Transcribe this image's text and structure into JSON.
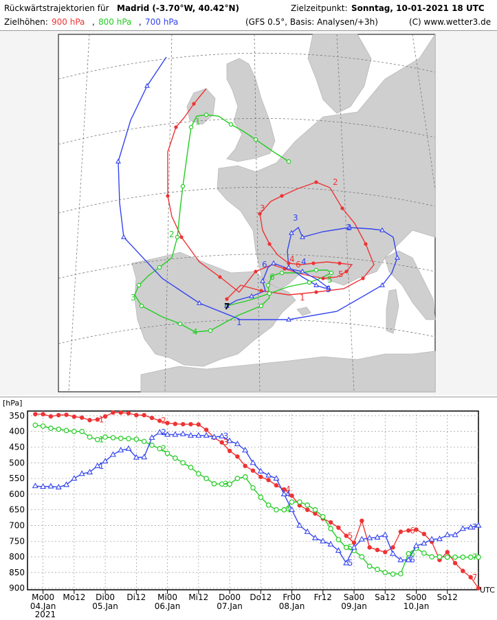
{
  "header": {
    "title_prefix": "Rückwärtstrajektorien für",
    "location": "Madrid (-3.70°W, 40.42°N)",
    "target_label": "Zielzeitpunkt:",
    "target_time": "Sonntag, 10-01-2021  18 UTC",
    "levels_label": "Zielhöhen:",
    "level_900": "900 hPa",
    "level_800": "800 hPa",
    "level_700": "700 hPa",
    "sep1": ",",
    "sep2": ",",
    "model_info": "(GFS 0.5°, Basis: Analysen/+3h)",
    "copyright": "(C) www.wetter3.de"
  },
  "colors": {
    "h900": "#ee3333",
    "h800": "#22cc22",
    "h700": "#3344ee"
  },
  "map": {
    "origin_label": "7",
    "traj_900": {
      "day_labels": [
        "1",
        "2",
        "3",
        "4",
        "5",
        "6"
      ]
    },
    "traj_800": {
      "day_labels": [
        "1",
        "2",
        "3",
        "4",
        "5",
        "6"
      ]
    },
    "traj_700": {
      "day_labels": [
        "1",
        "2",
        "3",
        "4",
        "5",
        "6"
      ]
    }
  },
  "chart_data": {
    "type": "line",
    "ylabel": "[hPa]",
    "y_ticks": [
      350,
      400,
      450,
      500,
      550,
      600,
      650,
      700,
      750,
      800,
      850,
      900
    ],
    "ylim": [
      335,
      905
    ],
    "x_ticks_top": [
      "Mo00",
      "Mo12",
      "Di00",
      "Di12",
      "Mi00",
      "Mi12",
      "Do00",
      "Do12",
      "Fr00",
      "Fr12",
      "Sa00",
      "Sa12",
      "So00",
      "So12"
    ],
    "x_ticks_dates": [
      "04.Jan",
      "05.Jan",
      "06.Jan",
      "07.Jan",
      "08.Jan",
      "09.Jan",
      "10.Jan"
    ],
    "year": "2021",
    "utc_label": "UTC",
    "x_hours_range": [
      -6,
      168
    ],
    "series": [
      {
        "name": "900 hPa",
        "marker": "filled-circle",
        "x": [
          -3,
          0,
          3,
          6,
          9,
          12,
          15,
          18,
          21,
          24,
          27,
          30,
          33,
          36,
          39,
          42,
          45,
          48,
          51,
          54,
          57,
          60,
          63,
          66,
          69,
          72,
          75,
          78,
          81,
          84,
          87,
          90,
          93,
          96,
          99,
          102,
          105,
          108,
          111,
          114,
          117,
          120,
          123,
          126,
          129,
          132,
          135,
          138,
          141,
          144,
          147,
          150,
          153,
          156,
          159,
          162,
          165,
          168
        ],
        "values": [
          345,
          345,
          352,
          348,
          347,
          353,
          356,
          364,
          362,
          352,
          340,
          340,
          342,
          348,
          348,
          357,
          366,
          373,
          376,
          377,
          377,
          378,
          395,
          420,
          435,
          462,
          480,
          510,
          525,
          545,
          555,
          572,
          585,
          605,
          636,
          650,
          662,
          678,
          690,
          707,
          733,
          755,
          685,
          770,
          778,
          785,
          770,
          720,
          716,
          713,
          727,
          752,
          810,
          785,
          820,
          845,
          865,
          900
        ],
        "day_labels": [
          "1",
          "2",
          "3",
          "4",
          "5",
          "6",
          "7"
        ],
        "day_label_x": [
          21,
          45,
          69,
          93,
          117,
          141,
          165
        ]
      },
      {
        "name": "800 hPa",
        "marker": "open-circle",
        "x": [
          -3,
          0,
          3,
          6,
          9,
          12,
          15,
          18,
          21,
          24,
          27,
          30,
          33,
          36,
          39,
          42,
          45,
          48,
          51,
          54,
          57,
          60,
          63,
          66,
          69,
          72,
          75,
          78,
          81,
          84,
          87,
          90,
          93,
          96,
          99,
          102,
          105,
          108,
          111,
          114,
          117,
          120,
          123,
          126,
          129,
          132,
          135,
          138,
          141,
          144,
          147,
          150,
          153,
          156,
          159,
          162,
          165,
          168
        ],
        "values": [
          380,
          383,
          390,
          393,
          397,
          400,
          400,
          418,
          426,
          418,
          420,
          422,
          423,
          425,
          432,
          444,
          455,
          470,
          485,
          500,
          515,
          535,
          550,
          567,
          568,
          568,
          550,
          545,
          580,
          610,
          635,
          650,
          650,
          625,
          625,
          635,
          650,
          672,
          710,
          745,
          770,
          780,
          800,
          830,
          840,
          850,
          855,
          854,
          790,
          773,
          788,
          800,
          800,
          801,
          801,
          801,
          801,
          801
        ],
        "day_labels": [
          "1",
          "2",
          "3",
          "4",
          "5",
          "6",
          "7"
        ],
        "day_label_x": [
          21,
          45,
          69,
          93,
          117,
          141,
          165
        ]
      },
      {
        "name": "700 hPa",
        "marker": "open-triangle",
        "x": [
          -3,
          0,
          3,
          6,
          9,
          12,
          15,
          18,
          21,
          24,
          27,
          30,
          33,
          36,
          39,
          42,
          45,
          48,
          51,
          54,
          57,
          60,
          63,
          66,
          69,
          72,
          75,
          78,
          81,
          84,
          87,
          90,
          93,
          96,
          99,
          102,
          105,
          108,
          111,
          114,
          117,
          120,
          123,
          126,
          129,
          132,
          135,
          138,
          141,
          144,
          147,
          150,
          153,
          156,
          159,
          162,
          165,
          168
        ],
        "values": [
          574,
          576,
          575,
          578,
          570,
          550,
          535,
          530,
          510,
          495,
          474,
          460,
          455,
          483,
          482,
          420,
          403,
          410,
          410,
          408,
          413,
          413,
          413,
          418,
          415,
          430,
          440,
          460,
          500,
          527,
          540,
          550,
          600,
          650,
          700,
          720,
          740,
          750,
          760,
          780,
          820,
          770,
          744,
          740,
          738,
          730,
          790,
          810,
          810,
          765,
          757,
          744,
          743,
          730,
          730,
          710,
          706,
          700
        ],
        "day_labels": [
          "1",
          "2",
          "3",
          "4",
          "5",
          "6",
          "7"
        ],
        "day_label_x": [
          21,
          45,
          69,
          93,
          117,
          141,
          165
        ]
      }
    ]
  }
}
